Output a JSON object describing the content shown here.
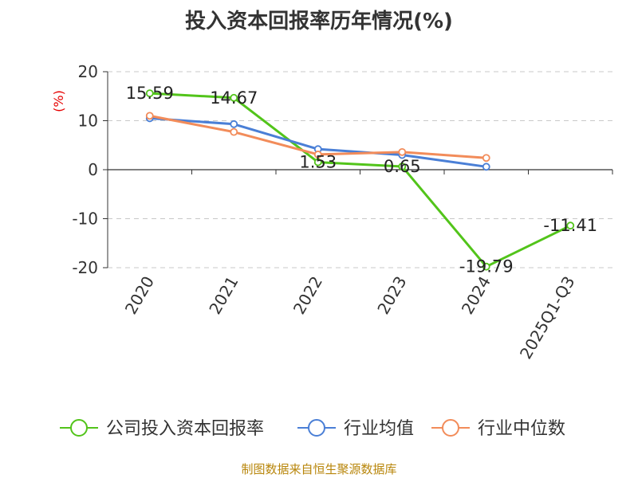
{
  "chart_data": {
    "type": "line",
    "title": "投入资本回报率历年情况(%)",
    "ylabel": "(%)",
    "categories": [
      "2020",
      "2021",
      "2022",
      "2023",
      "2024",
      "2025Q1-Q3"
    ],
    "ylim": [
      -20,
      20
    ],
    "yticks": [
      20,
      10,
      0,
      -10,
      -20
    ],
    "grid": "horizontal dashed",
    "legend_position": "bottom",
    "series": [
      {
        "name": "公司投入资本回报率",
        "color": "#52c41a",
        "values": [
          15.59,
          14.67,
          1.53,
          0.65,
          -19.79,
          -11.41
        ],
        "labels": [
          "15.59",
          "14.67",
          "1.53",
          "0.65",
          "-19.79",
          "-11.41"
        ]
      },
      {
        "name": "行业均值",
        "color": "#4a7fd6",
        "values": [
          10.5,
          9.3,
          4.2,
          3.0,
          0.6,
          null
        ]
      },
      {
        "name": "行业中位数",
        "color": "#f28c5a",
        "values": [
          11.0,
          7.7,
          3.1,
          3.6,
          2.4,
          null
        ]
      }
    ]
  },
  "footer": "制图数据来自恒生聚源数据库"
}
